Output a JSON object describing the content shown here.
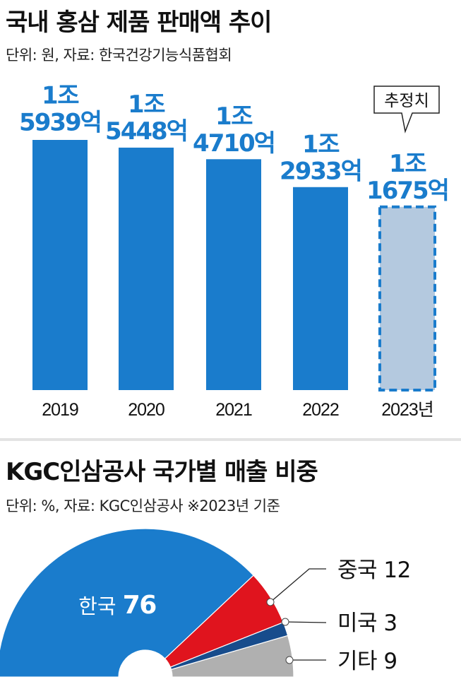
{
  "bar_chart_title": "국내 홍삼 제품 판매액 추이",
  "bar_chart_subtitle": "단위: 원, 자료: 한국건강기능식품협회",
  "pie_chart_title": "KGC인삼공사 국가별 매출 비중",
  "pie_chart_subtitle": "단위: %, 자료: KGC인삼공사 ※2023년 기준",
  "estimate_callout": "추정치",
  "colors": {
    "bar": "#1a7ccc",
    "estimate_fill": "#b4c9df",
    "korea": "#1a7ccc",
    "china": "#e0141e",
    "usa": "#174c8c",
    "other": "#b0b0b0"
  },
  "chart_data": [
    {
      "type": "bar",
      "categories": [
        "2019",
        "2020",
        "2021",
        "2022",
        "2023년"
      ],
      "values": [
        15939,
        15448,
        14710,
        12933,
        11675
      ],
      "unit_note": "억원",
      "value_labels": [
        [
          "1조",
          "5939억"
        ],
        [
          "1조",
          "5448억"
        ],
        [
          "1조",
          "4710억"
        ],
        [
          "1조",
          "2933억"
        ],
        [
          "1조",
          "1675억"
        ]
      ],
      "estimated": [
        false,
        false,
        false,
        false,
        true
      ],
      "title": "국내 홍삼 제품 판매액 추이",
      "xlabel": "",
      "ylabel": ""
    },
    {
      "type": "pie",
      "labels": [
        "한국",
        "중국",
        "미국",
        "기타"
      ],
      "values": [
        76,
        12,
        3,
        9
      ],
      "slice_labels": [
        "한국 76",
        "중국 12",
        "미국 3",
        "기타 9"
      ],
      "title": "KGC인삼공사 국가별 매출 비중"
    }
  ]
}
